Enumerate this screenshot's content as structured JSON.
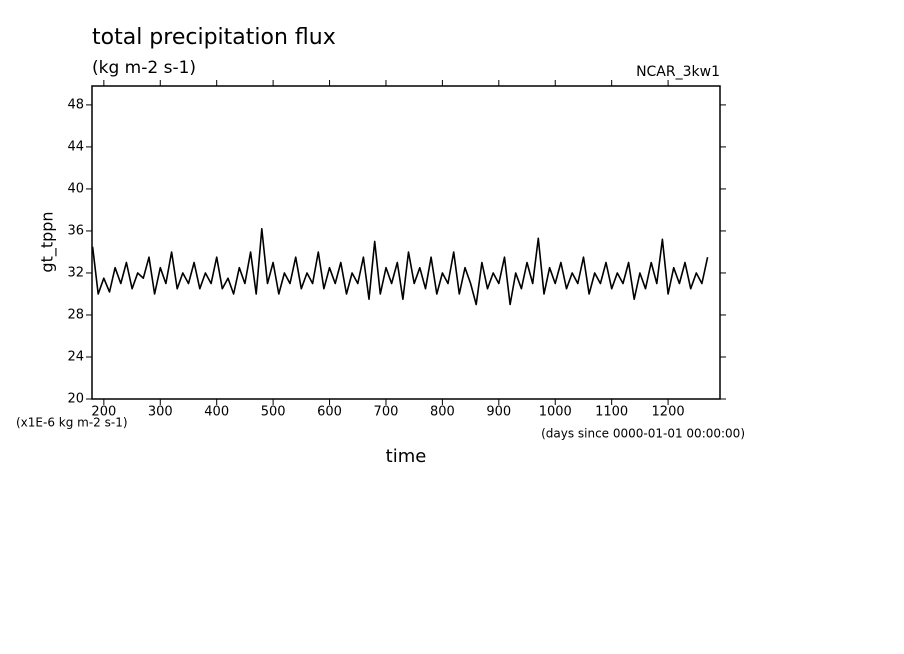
{
  "chart_data": {
    "type": "line",
    "title": "total precipitation flux",
    "subtitle": "(kg m-2 s-1)",
    "annotation": "NCAR_3kw1",
    "y_label": "gt_tppn",
    "y_unit": "(x1E-6 kg m-2 s-1)",
    "x_label": "time",
    "x_unit": "(days since 0000-01-01 00:00:00)",
    "xlim": [
      179,
      1292
    ],
    "ylim": [
      20,
      49.8
    ],
    "xticks": [
      200,
      300,
      400,
      500,
      600,
      700,
      800,
      900,
      1000,
      1100,
      1200
    ],
    "yticks": [
      20,
      24,
      28,
      32,
      36,
      40,
      44,
      48
    ],
    "series": [
      {
        "color": "#000000",
        "x": [
          180,
          190,
          200,
          210,
          220,
          230,
          240,
          250,
          260,
          270,
          280,
          290,
          300,
          310,
          320,
          330,
          340,
          350,
          360,
          370,
          380,
          390,
          400,
          410,
          420,
          430,
          440,
          450,
          460,
          470,
          480,
          490,
          500,
          510,
          520,
          530,
          540,
          550,
          560,
          570,
          580,
          590,
          600,
          610,
          620,
          630,
          640,
          650,
          660,
          670,
          680,
          690,
          700,
          710,
          720,
          730,
          740,
          750,
          760,
          770,
          780,
          790,
          800,
          810,
          820,
          830,
          840,
          850,
          860,
          870,
          880,
          890,
          900,
          910,
          920,
          930,
          940,
          950,
          960,
          970,
          980,
          990,
          1000,
          1010,
          1020,
          1030,
          1040,
          1050,
          1060,
          1070,
          1080,
          1090,
          1100,
          1110,
          1120,
          1130,
          1140,
          1150,
          1160,
          1170,
          1180,
          1190,
          1200,
          1210,
          1220,
          1230,
          1240,
          1250,
          1260,
          1270
        ],
        "values": [
          34.5,
          30,
          31.5,
          30.2,
          32.5,
          31,
          33,
          30.5,
          32,
          31.5,
          33.5,
          30,
          32.5,
          31,
          34,
          30.5,
          32,
          31,
          33,
          30.5,
          32,
          31,
          33.5,
          30.5,
          31.5,
          30,
          32.5,
          31,
          34,
          30,
          36.2,
          31,
          33,
          30,
          32,
          31,
          33.5,
          30.5,
          32,
          31,
          34,
          30.5,
          32.5,
          31,
          33,
          30,
          32,
          31,
          33.5,
          29.5,
          35,
          30,
          32.5,
          31,
          33,
          29.5,
          34,
          31,
          32.5,
          30.5,
          33.5,
          30,
          32,
          31,
          34,
          30,
          32.5,
          31,
          29,
          33,
          30.5,
          32,
          31,
          33.5,
          29,
          32,
          30.5,
          33,
          31,
          35.3,
          30,
          32.5,
          31,
          33,
          30.5,
          32,
          31,
          33.5,
          30,
          32,
          31,
          33,
          30.5,
          32,
          31,
          33,
          29.5,
          32,
          30.5,
          33,
          31,
          35.2,
          30,
          32.5,
          31,
          33,
          30.5,
          32,
          31,
          33.5
        ]
      }
    ]
  }
}
